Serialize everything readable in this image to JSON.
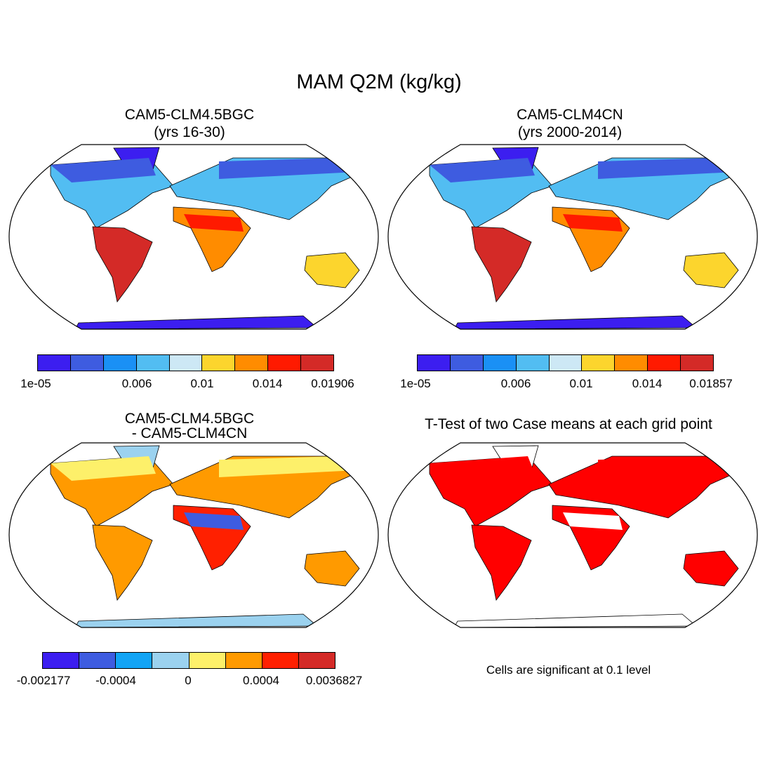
{
  "title": "MAM Q2M (kg/kg)",
  "panels": [
    {
      "id": "case1",
      "title_line1": "CAM5-CLM4.5BGC",
      "title_line2": "(yrs 16-30)",
      "colorbar": {
        "colors": [
          "#3c1ef0",
          "#3e5ce0",
          "#1a90f5",
          "#52bdf2",
          "#cde8f5",
          "#fcd52d",
          "#ff8c00",
          "#ff1a00",
          "#d42a27"
        ],
        "tick_labels": [
          "1e-05",
          "0.006",
          "0.01",
          "0.014",
          "0.01906"
        ]
      }
    },
    {
      "id": "case2",
      "title_line1": "CAM5-CLM4CN",
      "title_line2": " (yrs 2000-2014)",
      "colorbar": {
        "colors": [
          "#3c1ef0",
          "#3e5ce0",
          "#1a90f5",
          "#52bdf2",
          "#cde8f5",
          "#fcd52d",
          "#ff8c00",
          "#ff1a00",
          "#d42a27"
        ],
        "tick_labels": [
          "1e-05",
          "0.006",
          "0.01",
          "0.014",
          "0.01857"
        ]
      }
    },
    {
      "id": "difference",
      "title_line1": "CAM5-CLM4.5BGC",
      "title_line2": "- CAM5-CLM4CN",
      "colorbar": {
        "colors": [
          "#3c1ef0",
          "#3e5ce0",
          "#12a4f5",
          "#9bd2ef",
          "#fdf06a",
          "#ff9a00",
          "#ff2000",
          "#d42a27"
        ],
        "tick_labels": [
          "-0.002177",
          "-0.0004",
          "0",
          "0.0004",
          "0.0036827"
        ]
      }
    },
    {
      "id": "ttest",
      "title": "T-Test of two Case means at each grid point",
      "note": "Cells are significant at 0.1 level",
      "fill_color": "#ff0000"
    }
  ]
}
